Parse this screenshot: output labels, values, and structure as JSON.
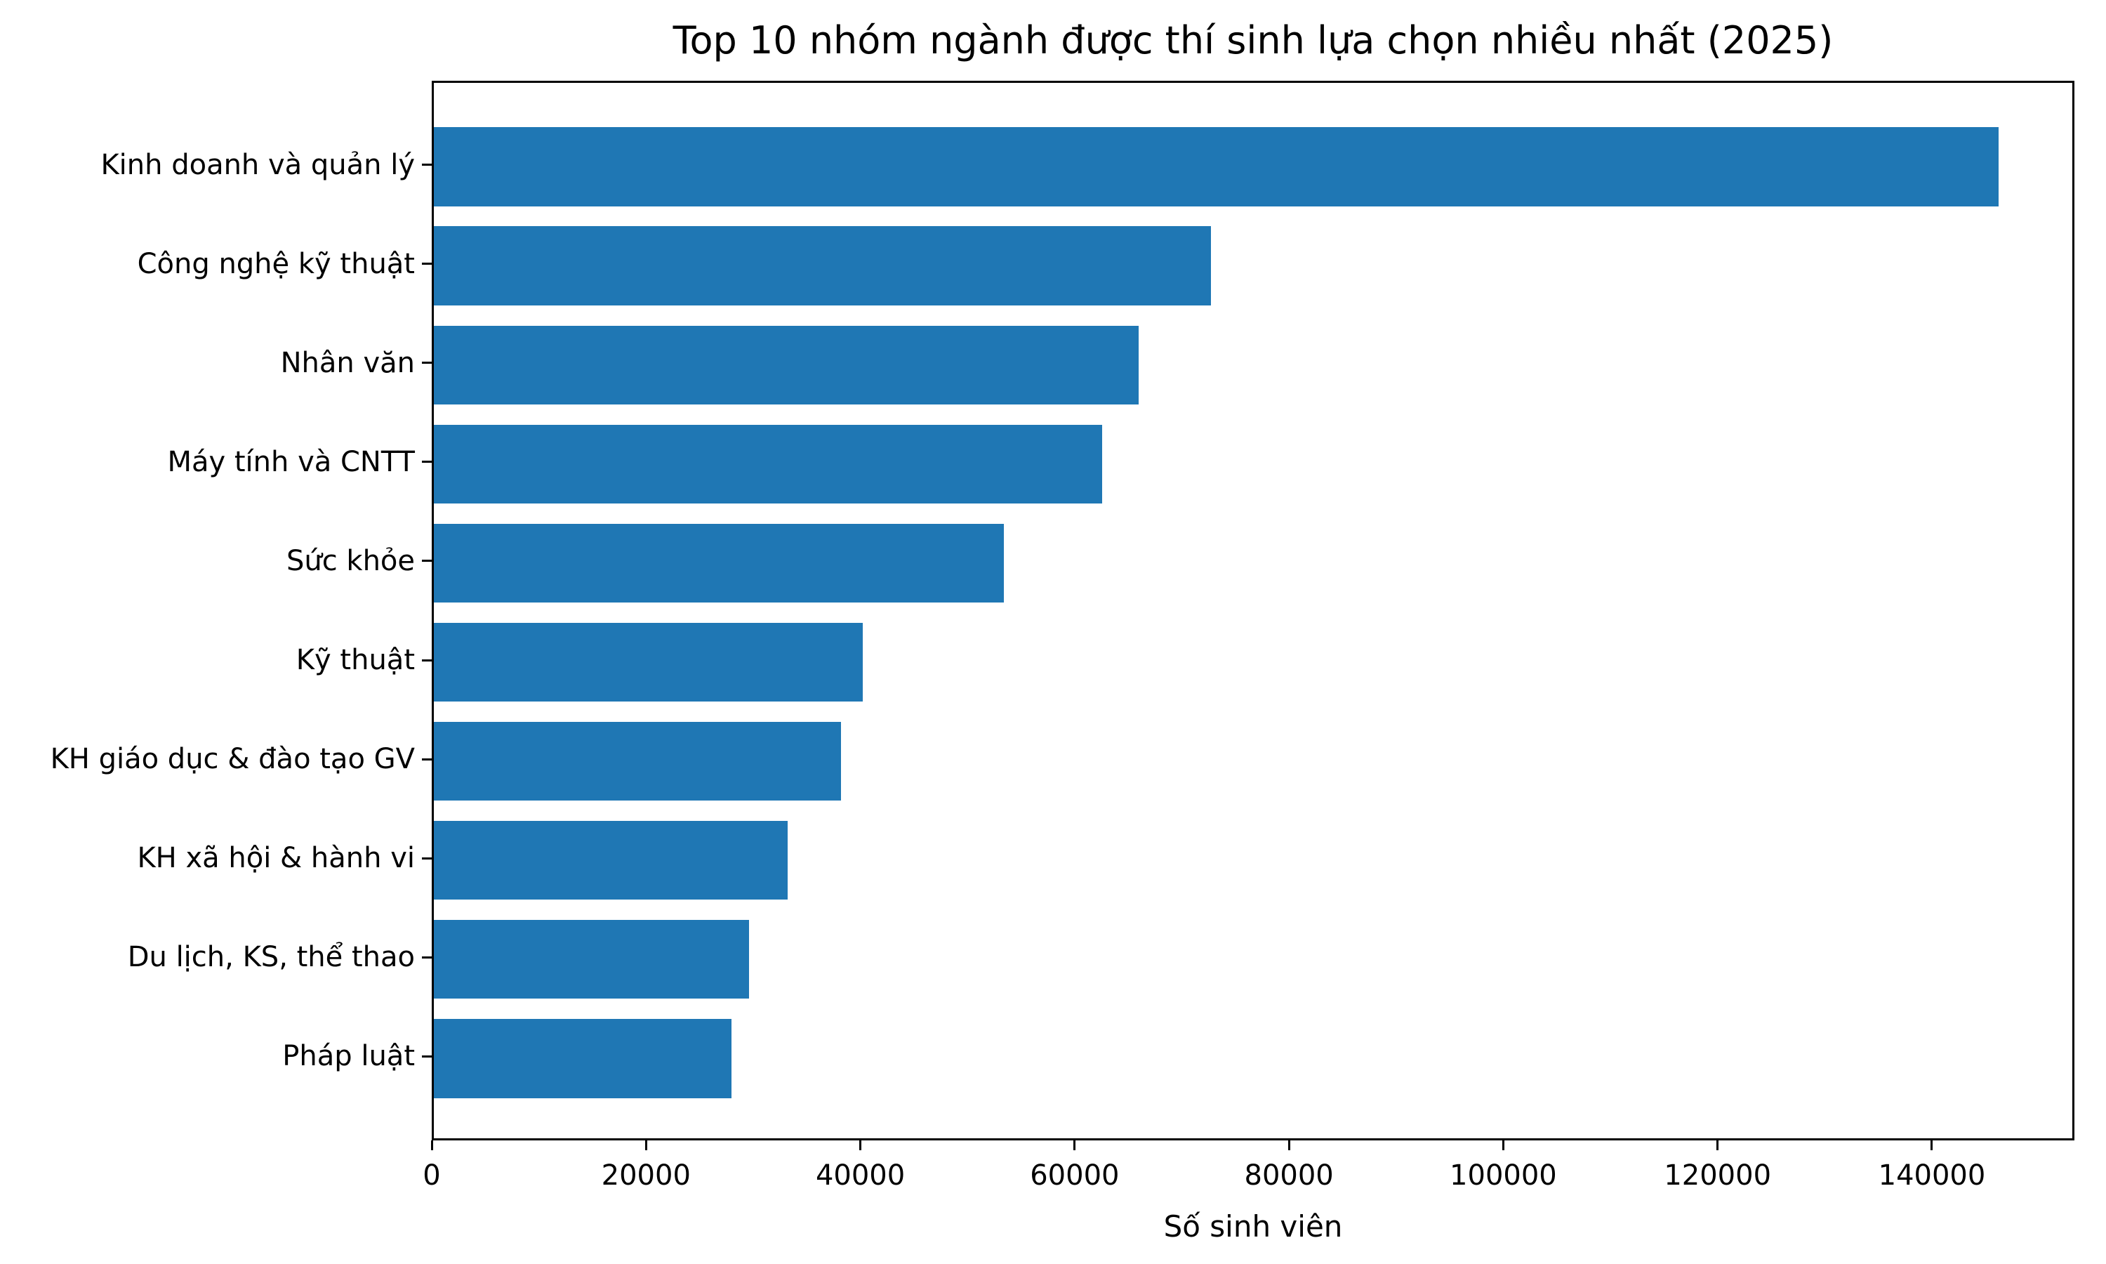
{
  "chart_data": {
    "type": "bar",
    "orientation": "horizontal",
    "title": "Top 10 nhóm ngành được thí sinh lựa chọn nhiều nhất (2025)",
    "xlabel": "Số sinh viên",
    "ylabel": "",
    "categories": [
      "Kinh doanh và quản lý",
      "Công nghệ kỹ thuật",
      "Nhân văn",
      "Máy tính và CNTT",
      "Sức khỏe",
      "Kỹ thuật",
      "KH giáo dục & đào tạo GV",
      "KH xã hội & hành vi",
      "Du lịch, KS, thể thao",
      "Pháp luật"
    ],
    "values": [
      146000,
      72500,
      65800,
      62400,
      53200,
      40000,
      38000,
      33000,
      29400,
      27800
    ],
    "xlim": [
      0,
      153300
    ],
    "xticks": [
      0,
      20000,
      40000,
      60000,
      80000,
      100000,
      120000,
      140000
    ],
    "bar_color": "#1f77b4",
    "grid": false,
    "legend": null
  }
}
